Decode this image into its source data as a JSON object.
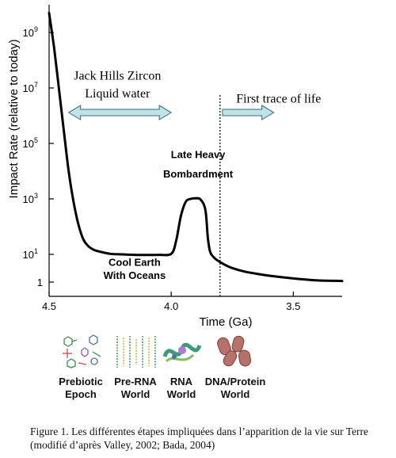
{
  "chart_data": {
    "type": "line",
    "title": "",
    "xlabel": "Time (Ga)",
    "ylabel": "Impact Rate (relative to today)",
    "xlim": [
      4.5,
      3.3
    ],
    "ylim": [
      1,
      10000000000
    ],
    "yscale": "log",
    "x_ticks": [
      {
        "value": 4.5,
        "label": "4.5"
      },
      {
        "value": 4.0,
        "label": "4.0"
      },
      {
        "value": 3.5,
        "label": "3.5"
      }
    ],
    "y_ticks": [
      {
        "value": 1,
        "label": "1"
      },
      {
        "value": 10,
        "label": "10",
        "exp": "1"
      },
      {
        "value": 1000,
        "label": "10",
        "exp": "3"
      },
      {
        "value": 100000,
        "label": "10",
        "exp": "5"
      },
      {
        "value": 10000000,
        "label": "10",
        "exp": "7"
      },
      {
        "value": 1000000000,
        "label": "10",
        "exp": "9"
      }
    ],
    "series": [
      {
        "x": [
          4.5,
          4.48,
          4.46,
          4.44,
          4.42,
          4.4,
          4.38,
          4.36,
          4.34,
          4.32,
          4.3,
          4.25,
          4.2,
          4.15,
          4.1,
          4.05,
          4.0,
          3.98,
          3.96,
          3.94,
          3.92,
          3.9,
          3.88,
          3.86,
          3.85,
          3.84,
          3.82,
          3.8,
          3.78,
          3.75,
          3.7,
          3.65,
          3.6,
          3.5,
          3.4,
          3.3
        ],
        "y": [
          5000000000,
          300000000,
          10000000,
          300000,
          10000,
          800,
          120,
          35,
          20,
          15,
          13,
          10.5,
          10,
          9.6,
          9.5,
          9.6,
          10.5,
          30,
          250,
          800,
          1000,
          1050,
          950,
          400,
          40,
          12,
          7,
          5.3,
          4.2,
          3.2,
          2.4,
          2.0,
          1.7,
          1.35,
          1.15,
          1.1
        ]
      }
    ],
    "marker_line": {
      "x": 3.8
    },
    "annotations": [
      {
        "text": "Jack Hills Zircon",
        "x": 4.22,
        "y": 20000000
      },
      {
        "text": "Liquid water",
        "x": 4.22,
        "y": 4500000
      },
      {
        "text": "First trace of life",
        "x": 3.56,
        "y": 3000000
      },
      {
        "text": "Late Heavy",
        "x": 3.89,
        "y": 30000
      },
      {
        "text": "Bombardment",
        "x": 3.89,
        "y": 6000
      },
      {
        "text": "Cool Earth",
        "x": 4.15,
        "y": 3.8
      },
      {
        "text": "With Oceans",
        "x": 4.15,
        "y": 1.3
      }
    ],
    "arrows": [
      {
        "kind": "double",
        "x_from": 4.42,
        "x_to": 4.0,
        "y": 1300000
      },
      {
        "kind": "single",
        "x_from": 3.79,
        "x_to": 3.58,
        "y": 1300000
      }
    ],
    "grid": false,
    "legend": "none"
  },
  "stages": [
    {
      "label": "Prebiotic\nEpoch",
      "icon": "molecules-icon"
    },
    {
      "label": "Pre-RNA\nWorld",
      "icon": "pre-rna-strands-icon"
    },
    {
      "label": "RNA\nWorld",
      "icon": "rna-molecule-icon"
    },
    {
      "label": "DNA/Protein\nWorld",
      "icon": "cells-icon"
    }
  ],
  "caption": "Figure 1. Les différentes étapes impliquées dans l’apparition de la vie sur Terre (modifié d’après Valley, 2002; Bada, 2004)",
  "colors": {
    "curve": "#000000",
    "arrow_fill": "#bfe3e6",
    "arrow_stroke": "#2f6f77"
  }
}
